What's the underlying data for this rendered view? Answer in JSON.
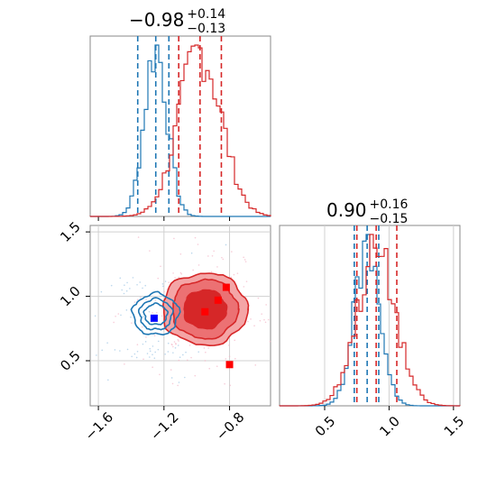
{
  "titles": {
    "param1": {
      "value": "−0.98",
      "plus": "+0.14",
      "minus": "−0.13"
    },
    "param2": {
      "value": "0.90",
      "plus": "+0.16",
      "minus": "−0.15"
    }
  },
  "colors": {
    "blue": "#1f77b4",
    "red": "#d62728",
    "red_light": "#f4a5a6",
    "red_mid": "#ec7173",
    "grid": "#d0d0d0"
  },
  "chart_data": [
    {
      "type": "histogram",
      "panel": "top-left",
      "xlim": [
        -1.65,
        -0.55
      ],
      "series": [
        {
          "color": "blue",
          "peak": -1.25,
          "sigma": 0.07,
          "quantiles": [
            -1.36,
            -1.25,
            -1.17
          ]
        },
        {
          "color": "red",
          "peak": -0.98,
          "sigma": 0.13,
          "quantiles": [
            -1.11,
            -0.98,
            -0.85
          ]
        }
      ]
    },
    {
      "type": "scatter",
      "panel": "bottom-left",
      "xlim": [
        -1.65,
        -0.55
      ],
      "ylim": [
        0.15,
        1.55
      ],
      "x_ticks": [
        "−1.6",
        "−1.2",
        "−0.8"
      ],
      "y_ticks": [
        "0.5",
        "1.0",
        "1.5"
      ],
      "grid": true,
      "points": [
        {
          "x": -1.26,
          "y": 0.83,
          "color": "blue"
        },
        {
          "x": -0.82,
          "y": 1.07,
          "color": "red"
        },
        {
          "x": -0.87,
          "y": 0.97,
          "color": "red"
        },
        {
          "x": -0.95,
          "y": 0.88,
          "color": "red"
        },
        {
          "x": -0.8,
          "y": 0.47,
          "color": "red"
        }
      ],
      "contours": [
        {
          "color": "blue",
          "center": [
            -1.25,
            0.86
          ],
          "radii": [
            [
              0.07,
              0.08
            ],
            [
              0.1,
              0.12
            ],
            [
              0.14,
              0.16
            ]
          ]
        },
        {
          "color": "red",
          "center": [
            -0.95,
            0.9
          ],
          "radii": [
            [
              0.13,
              0.15
            ],
            [
              0.2,
              0.23
            ],
            [
              0.26,
              0.28
            ]
          ]
        }
      ]
    },
    {
      "type": "histogram",
      "panel": "bottom-right",
      "xlim": [
        0.15,
        1.55
      ],
      "x_ticks": [
        "0.5",
        "1.0",
        "1.5"
      ],
      "series": [
        {
          "color": "blue",
          "peak": 0.83,
          "sigma": 0.1,
          "quantiles": [
            0.73,
            0.83,
            0.92
          ]
        },
        {
          "color": "red",
          "peak": 0.9,
          "sigma": 0.15,
          "quantiles": [
            0.75,
            0.9,
            1.06
          ]
        }
      ]
    }
  ]
}
